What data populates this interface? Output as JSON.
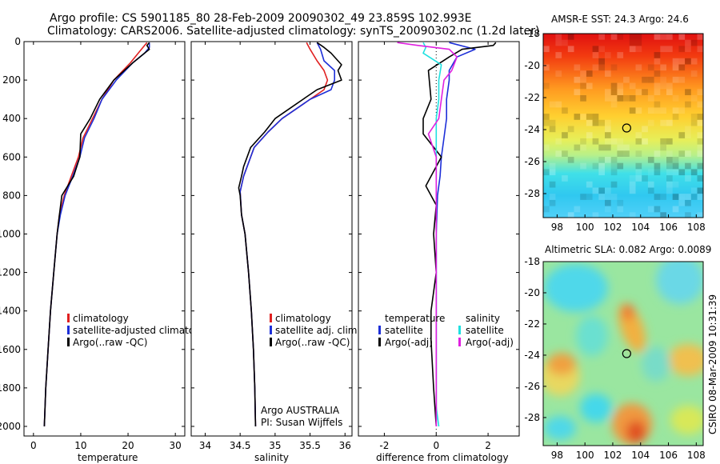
{
  "header": {
    "title_line1": "Argo profile: CS 5901185_80 28-Feb-2009 20090302_49 23.859S 102.993E",
    "title_line2": "Climatology: CARS2006. Satellite-adjusted climatology: synTS_20090302.nc (1.2d later)"
  },
  "side_label": "CSIRO 08-Mar-2009 10:31:39",
  "colors": {
    "climatology": "#e02020",
    "satellite": "#1d2fd8",
    "argo": "#000000",
    "satellite_salinity": "#20e0e0",
    "argo_adj_salinity": "#e020e0"
  },
  "chart_data": [
    {
      "type": "line",
      "id": "temperature-profile",
      "xlabel": "temperature",
      "ylabel": "",
      "xlim": [
        -2,
        32
      ],
      "ylim": [
        2050,
        0
      ],
      "xticks": [
        "0",
        "10",
        "20",
        "30"
      ],
      "xtick_values": [
        0,
        10,
        20,
        30
      ],
      "yticks": [
        "0",
        "200",
        "400",
        "600",
        "800",
        "1000",
        "1200",
        "1400",
        "1600",
        "1800",
        "2000"
      ],
      "ytick_values": [
        0,
        200,
        400,
        600,
        800,
        1000,
        1200,
        1400,
        1600,
        1800,
        2000
      ],
      "legend": [
        "climatology",
        "satellite-adjusted climatology",
        "Argo(..raw -QC)"
      ],
      "legend_display": [
        "climatology",
        "satellite-adjusted climatolog",
        "Argo(..raw -QC)"
      ],
      "series": [
        {
          "name": "climatology",
          "color": "#e02020",
          "points": [
            [
              24.0,
              5
            ],
            [
              23.5,
              20
            ],
            [
              22.5,
              50
            ],
            [
              20.5,
              110
            ],
            [
              17.0,
              200
            ],
            [
              14.5,
              300
            ],
            [
              12.5,
              400
            ],
            [
              10.5,
              500
            ],
            [
              9.5,
              600
            ],
            [
              8.0,
              700
            ],
            [
              6.5,
              800
            ],
            [
              5.5,
              900
            ],
            [
              5.0,
              1000
            ],
            [
              4.3,
              1200
            ],
            [
              3.6,
              1400
            ],
            [
              3.1,
              1600
            ],
            [
              2.6,
              1800
            ],
            [
              2.3,
              2000
            ]
          ]
        },
        {
          "name": "satellite-adjusted climatology",
          "color": "#1d2fd8",
          "points": [
            [
              24.5,
              5
            ],
            [
              24.5,
              30
            ],
            [
              23.5,
              60
            ],
            [
              21.0,
              110
            ],
            [
              17.5,
              200
            ],
            [
              14.5,
              300
            ],
            [
              12.8,
              400
            ],
            [
              10.8,
              500
            ],
            [
              9.8,
              600
            ],
            [
              8.3,
              700
            ],
            [
              6.7,
              800
            ],
            [
              5.7,
              900
            ],
            [
              5.0,
              1000
            ],
            [
              4.3,
              1200
            ],
            [
              3.6,
              1400
            ],
            [
              3.1,
              1600
            ],
            [
              2.6,
              1800
            ],
            [
              2.3,
              2000
            ]
          ]
        },
        {
          "name": "Argo(..raw -QC)",
          "color": "#000000",
          "points": [
            [
              24.5,
              5
            ],
            [
              24.0,
              20
            ],
            [
              24.5,
              40
            ],
            [
              23.5,
              60
            ],
            [
              21.0,
              110
            ],
            [
              17.0,
              200
            ],
            [
              14.0,
              300
            ],
            [
              12.0,
              400
            ],
            [
              10.0,
              480
            ],
            [
              9.8,
              600
            ],
            [
              8.5,
              700
            ],
            [
              6.0,
              800
            ],
            [
              5.5,
              900
            ],
            [
              5.0,
              1000
            ],
            [
              4.3,
              1200
            ],
            [
              3.6,
              1400
            ],
            [
              3.1,
              1600
            ],
            [
              2.6,
              1800
            ],
            [
              2.3,
              2000
            ]
          ]
        }
      ]
    },
    {
      "type": "line",
      "id": "salinity-profile",
      "xlabel": "salinity",
      "ylabel": "",
      "xlim": [
        33.8,
        36.1
      ],
      "ylim": [
        2050,
        0
      ],
      "xticks": [
        "34",
        "34.5",
        "35",
        "35.5",
        "36"
      ],
      "xtick_values": [
        34,
        34.5,
        35,
        35.5,
        36
      ],
      "legend": [
        "climatology",
        "satellite adj. clim.",
        "Argo(..raw -QC)"
      ],
      "annotation": [
        "Argo AUSTRALIA",
        "PI: Susan Wijffels"
      ],
      "series": [
        {
          "name": "climatology",
          "color": "#e02020",
          "points": [
            [
              35.45,
              5
            ],
            [
              35.5,
              40
            ],
            [
              35.6,
              100
            ],
            [
              35.7,
              150
            ],
            [
              35.75,
              200
            ],
            [
              35.7,
              250
            ],
            [
              35.5,
              300
            ],
            [
              35.3,
              350
            ],
            [
              35.1,
              400
            ],
            [
              34.9,
              470
            ],
            [
              34.7,
              550
            ],
            [
              34.6,
              650
            ],
            [
              34.55,
              700
            ],
            [
              34.5,
              780
            ],
            [
              34.52,
              900
            ],
            [
              34.57,
              1000
            ],
            [
              34.62,
              1200
            ],
            [
              34.66,
              1400
            ],
            [
              34.69,
              1600
            ],
            [
              34.71,
              1800
            ],
            [
              34.72,
              2000
            ]
          ]
        },
        {
          "name": "satellite adj. clim.",
          "color": "#1d2fd8",
          "points": [
            [
              35.6,
              5
            ],
            [
              35.65,
              40
            ],
            [
              35.7,
              100
            ],
            [
              35.85,
              150
            ],
            [
              35.85,
              200
            ],
            [
              35.8,
              250
            ],
            [
              35.5,
              300
            ],
            [
              35.3,
              350
            ],
            [
              35.1,
              400
            ],
            [
              34.9,
              470
            ],
            [
              34.7,
              550
            ],
            [
              34.6,
              650
            ],
            [
              34.55,
              700
            ],
            [
              34.5,
              780
            ],
            [
              34.52,
              900
            ],
            [
              34.57,
              1000
            ],
            [
              34.62,
              1200
            ],
            [
              34.66,
              1400
            ],
            [
              34.69,
              1600
            ],
            [
              34.71,
              1800
            ],
            [
              34.72,
              2000
            ]
          ]
        },
        {
          "name": "Argo(..raw -QC)",
          "color": "#000000",
          "points": [
            [
              35.6,
              5
            ],
            [
              35.7,
              30
            ],
            [
              35.8,
              60
            ],
            [
              35.95,
              120
            ],
            [
              35.9,
              150
            ],
            [
              35.95,
              200
            ],
            [
              35.6,
              250
            ],
            [
              35.4,
              300
            ],
            [
              35.2,
              350
            ],
            [
              35.0,
              400
            ],
            [
              34.85,
              470
            ],
            [
              34.65,
              550
            ],
            [
              34.55,
              650
            ],
            [
              34.52,
              700
            ],
            [
              34.48,
              760
            ],
            [
              34.5,
              800
            ],
            [
              34.52,
              900
            ],
            [
              34.57,
              1000
            ],
            [
              34.62,
              1200
            ],
            [
              34.66,
              1400
            ],
            [
              34.69,
              1600
            ],
            [
              34.71,
              1800
            ],
            [
              34.72,
              2000
            ]
          ]
        }
      ]
    },
    {
      "type": "line",
      "id": "difference-profile",
      "xlabel": "difference from climatology",
      "ylabel": "",
      "xlim": [
        -3.0,
        3.2
      ],
      "ylim": [
        2050,
        0
      ],
      "xticks": [
        "-2",
        "0",
        "2"
      ],
      "xtick_values": [
        -2,
        0,
        2
      ],
      "legend_temperature_title": "temperature",
      "legend_temperature": [
        "satellite",
        "Argo(-adj)"
      ],
      "legend_salinity_title": "salinity",
      "legend_salinity": [
        "satellite",
        "Argo(-adj)"
      ],
      "series": [
        {
          "name": "temperature satellite",
          "color": "#1d2fd8",
          "points": [
            [
              0.5,
              5
            ],
            [
              1.5,
              40
            ],
            [
              0.8,
              80
            ],
            [
              0.5,
              150
            ],
            [
              0.5,
              200
            ],
            [
              0.4,
              300
            ],
            [
              0.4,
              400
            ],
            [
              0.3,
              500
            ],
            [
              0.2,
              600
            ],
            [
              0.15,
              700
            ],
            [
              0.05,
              800
            ],
            [
              0.0,
              1000
            ],
            [
              0.0,
              1200
            ],
            [
              0.0,
              1600
            ],
            [
              0.0,
              2000
            ]
          ]
        },
        {
          "name": "temperature Argo(-adj)",
          "color": "#000000",
          "points": [
            [
              2.3,
              5
            ],
            [
              2.2,
              20
            ],
            [
              1.0,
              40
            ],
            [
              0.5,
              80
            ],
            [
              -0.3,
              150
            ],
            [
              -0.2,
              300
            ],
            [
              -0.5,
              400
            ],
            [
              -0.5,
              480
            ],
            [
              0.2,
              600
            ],
            [
              -0.2,
              700
            ],
            [
              -0.4,
              750
            ],
            [
              -0.2,
              800
            ],
            [
              0.0,
              850
            ],
            [
              -0.1,
              1000
            ],
            [
              0.0,
              1200
            ],
            [
              -0.2,
              1400
            ],
            [
              -0.2,
              1550
            ],
            [
              -0.1,
              1800
            ],
            [
              0.0,
              2000
            ]
          ]
        },
        {
          "name": "salinity satellite",
          "color": "#20e0e0",
          "points": [
            [
              -0.5,
              5
            ],
            [
              -0.4,
              30
            ],
            [
              -0.5,
              60
            ],
            [
              0.2,
              120
            ],
            [
              0.1,
              200
            ],
            [
              0.1,
              300
            ],
            [
              0.0,
              400
            ],
            [
              0.0,
              600
            ],
            [
              0.0,
              800
            ],
            [
              0.0,
              1000
            ],
            [
              0.0,
              1200
            ],
            [
              0.0,
              1600
            ],
            [
              0.0,
              1900
            ],
            [
              0.1,
              2000
            ]
          ]
        },
        {
          "name": "salinity Argo(-adj)",
          "color": "#e020e0",
          "points": [
            [
              -1.5,
              5
            ],
            [
              -0.7,
              20
            ],
            [
              0.5,
              40
            ],
            [
              0.8,
              80
            ],
            [
              0.6,
              150
            ],
            [
              0.3,
              200
            ],
            [
              0.2,
              300
            ],
            [
              0.1,
              400
            ],
            [
              -0.3,
              480
            ],
            [
              0.0,
              600
            ],
            [
              0.0,
              800
            ],
            [
              0.0,
              1000
            ],
            [
              0.0,
              1200
            ],
            [
              0.0,
              1600
            ],
            [
              0.0,
              2000
            ]
          ]
        }
      ]
    },
    {
      "type": "heatmap",
      "id": "sst-map",
      "title": "AMSR-E SST: 24.3 Argo: 24.6",
      "xlim": [
        97,
        108.5
      ],
      "ylim": [
        -29.5,
        -18
      ],
      "xticks": [
        "98",
        "100",
        "102",
        "104",
        "106",
        "108"
      ],
      "xtick_values": [
        98,
        100,
        102,
        104,
        106,
        108
      ],
      "yticks": [
        "-18",
        "-20",
        "-22",
        "-24",
        "-26",
        "-28"
      ],
      "ytick_values": [
        -18,
        -20,
        -22,
        -24,
        -26,
        -28
      ],
      "marker": {
        "lon": 103.0,
        "lat": -23.9
      }
    },
    {
      "type": "heatmap",
      "id": "sla-map",
      "title": "Altimetric SLA: 0.082 Argo: 0.0089",
      "xlim": [
        97,
        108.5
      ],
      "ylim": [
        -29.8,
        -18
      ],
      "xticks": [
        "98",
        "100",
        "102",
        "104",
        "106",
        "108"
      ],
      "xtick_values": [
        98,
        100,
        102,
        104,
        106,
        108
      ],
      "yticks": [
        "-18",
        "-20",
        "-22",
        "-24",
        "-26",
        "-28"
      ],
      "ytick_values": [
        -18,
        -20,
        -22,
        -24,
        -26,
        -28
      ],
      "marker": {
        "lon": 103.0,
        "lat": -23.9
      }
    }
  ]
}
